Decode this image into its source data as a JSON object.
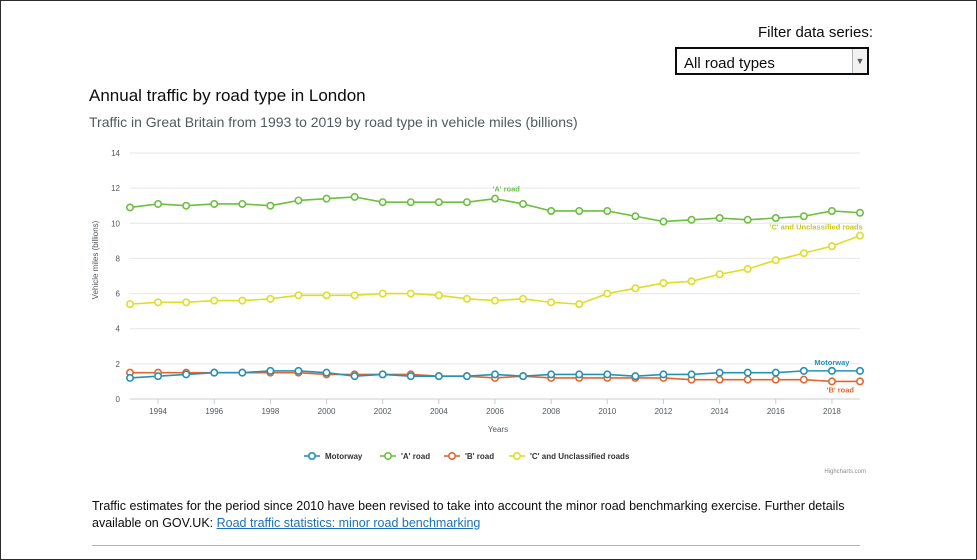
{
  "filter": {
    "label": "Filter data series:",
    "selected": "All road types",
    "arrow_icon": "chevron-down-icon"
  },
  "chart_data": {
    "type": "line",
    "title": "Annual traffic by road type in London",
    "subtitle": "Traffic in Great Britain from 1993 to 2019 by road type in vehicle miles (billions)",
    "xlabel": "Years",
    "ylabel": "Vehicle miles (billions)",
    "xlim": [
      1993,
      2019
    ],
    "ylim": [
      0,
      14
    ],
    "x_ticks": [
      1994,
      1996,
      1998,
      2000,
      2002,
      2004,
      2006,
      2008,
      2010,
      2012,
      2014,
      2016,
      2018
    ],
    "y_ticks": [
      0,
      2,
      4,
      6,
      8,
      10,
      12,
      14
    ],
    "grid": true,
    "legend_position": "bottom",
    "x": [
      1993,
      1994,
      1995,
      1996,
      1997,
      1998,
      1999,
      2000,
      2001,
      2002,
      2003,
      2004,
      2005,
      2006,
      2007,
      2008,
      2009,
      2010,
      2011,
      2012,
      2013,
      2014,
      2015,
      2016,
      2017,
      2018,
      2019
    ],
    "series": [
      {
        "name": "Motorway",
        "color": "#2592b5",
        "end_label": "Motorway",
        "values": [
          1.2,
          1.3,
          1.4,
          1.5,
          1.5,
          1.6,
          1.6,
          1.5,
          1.3,
          1.4,
          1.3,
          1.3,
          1.3,
          1.4,
          1.3,
          1.4,
          1.4,
          1.4,
          1.3,
          1.4,
          1.4,
          1.5,
          1.5,
          1.5,
          1.6,
          1.6,
          1.6
        ]
      },
      {
        "name": "'A' road",
        "color": "#6cbf3f",
        "end_label": "'A' road",
        "values": [
          10.9,
          11.1,
          11.0,
          11.1,
          11.1,
          11.0,
          11.3,
          11.4,
          11.5,
          11.2,
          11.2,
          11.2,
          11.2,
          11.4,
          11.1,
          10.7,
          10.7,
          10.7,
          10.4,
          10.1,
          10.2,
          10.3,
          10.2,
          10.3,
          10.4,
          10.7,
          10.6
        ]
      },
      {
        "name": "'B' road",
        "color": "#e2662f",
        "end_label": "'B' road",
        "values": [
          1.5,
          1.5,
          1.5,
          1.5,
          1.5,
          1.5,
          1.5,
          1.4,
          1.4,
          1.4,
          1.4,
          1.3,
          1.3,
          1.2,
          1.3,
          1.2,
          1.2,
          1.2,
          1.2,
          1.2,
          1.1,
          1.1,
          1.1,
          1.1,
          1.1,
          1.0,
          1.0
        ]
      },
      {
        "name": "'C' and Unclassified roads",
        "color": "#dede2a",
        "end_label": "'C' and Unclassified roads",
        "values": [
          5.4,
          5.5,
          5.5,
          5.6,
          5.6,
          5.7,
          5.9,
          5.9,
          5.9,
          6.0,
          6.0,
          5.9,
          5.7,
          5.6,
          5.7,
          5.5,
          5.4,
          6.0,
          6.3,
          6.6,
          6.7,
          7.1,
          7.4,
          7.9,
          8.3,
          8.7,
          9.3
        ]
      }
    ],
    "credits": "Highcharts.com"
  },
  "footnote": {
    "text": "Traffic estimates for the period since 2010 have been revised to take into account the minor road benchmarking exercise. Further details available on GOV.UK: ",
    "link_text": "Road traffic statistics: minor road benchmarking"
  }
}
